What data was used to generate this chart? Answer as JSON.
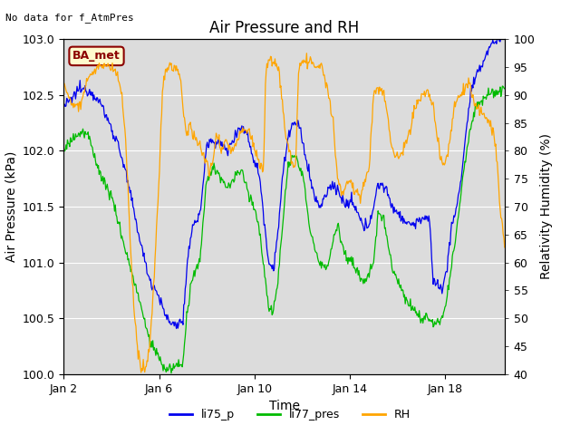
{
  "title": "Air Pressure and RH",
  "top_left_text": "No data for f_AtmPres",
  "xlabel": "Time",
  "ylabel_left": "Air Pressure (kPa)",
  "ylabel_right": "Relativity Humidity (%)",
  "ylim_left": [
    100.0,
    103.0
  ],
  "ylim_right": [
    40,
    100
  ],
  "yticks_left": [
    100.0,
    100.5,
    101.0,
    101.5,
    102.0,
    102.5,
    103.0
  ],
  "yticks_right": [
    40,
    45,
    50,
    55,
    60,
    65,
    70,
    75,
    80,
    85,
    90,
    95,
    100
  ],
  "xtick_labels": [
    "Jan 2",
    "Jan 6",
    "Jan 10",
    "Jan 14",
    "Jan 18"
  ],
  "xtick_positions": [
    1,
    5,
    9,
    13,
    17
  ],
  "xlim": [
    1,
    19.5
  ],
  "color_blue": "#0000EE",
  "color_green": "#00BB00",
  "color_orange": "#FFA500",
  "bg_color": "#DCDCDC",
  "annotation_text": "BA_met",
  "annotation_facecolor": "#FFFACD",
  "annotation_edgecolor": "#8B0000",
  "annotation_textcolor": "#8B0000",
  "legend_labels": [
    "li75_p",
    "li77_pres",
    "RH"
  ],
  "title_fontsize": 12,
  "label_fontsize": 10,
  "tick_fontsize": 9
}
